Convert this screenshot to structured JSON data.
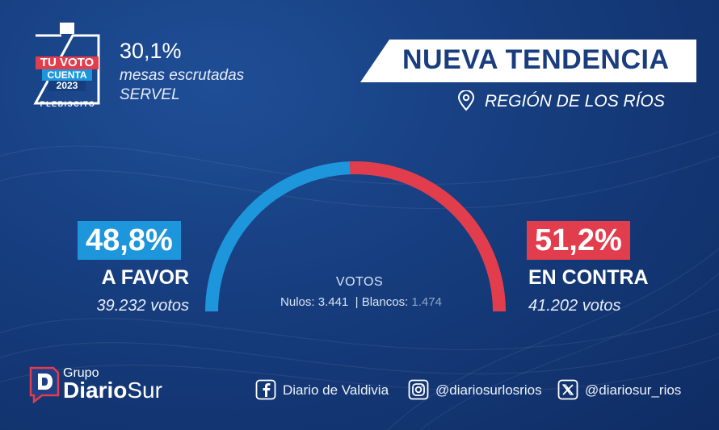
{
  "header": {
    "badge": {
      "line1": "TU VOTO",
      "line2": "CUENTA",
      "line3": "2023",
      "line4": "PLEBISCITO"
    },
    "mesas_pct": "30,1%",
    "mesas_label": "mesas escrutadas",
    "source": "SERVEL",
    "banner_title": "NUEVA TENDENCIA",
    "region": "REGIÓN DE LOS RÍOS"
  },
  "chart_data": {
    "type": "pie",
    "style": "semicircle-gauge",
    "categories": [
      "A FAVOR",
      "EN CONTRA"
    ],
    "values": [
      48.8,
      51.2
    ],
    "value_labels": [
      "48,8%",
      "51,2%"
    ],
    "vote_counts": [
      39232,
      41202
    ],
    "vote_labels": [
      "39.232 votos",
      "41.202 votos"
    ],
    "colors": [
      "#1e96dc",
      "#e23d4c"
    ],
    "center": {
      "title": "VOTOS",
      "nulos_label": "Nulos:",
      "nulos_value": "3.441",
      "separator": "|",
      "blancos_label": "Blancos:",
      "blancos_value": "1.474"
    }
  },
  "footer": {
    "logo_group": "Grupo",
    "logo_name_bold": "Diario",
    "logo_name_light": "Sur",
    "social": [
      {
        "icon": "facebook-icon",
        "text": "Diario de Valdivia"
      },
      {
        "icon": "instagram-icon",
        "text": "@diariosurlosrios"
      },
      {
        "icon": "x-icon",
        "text": "@diariosur_rios"
      }
    ]
  }
}
